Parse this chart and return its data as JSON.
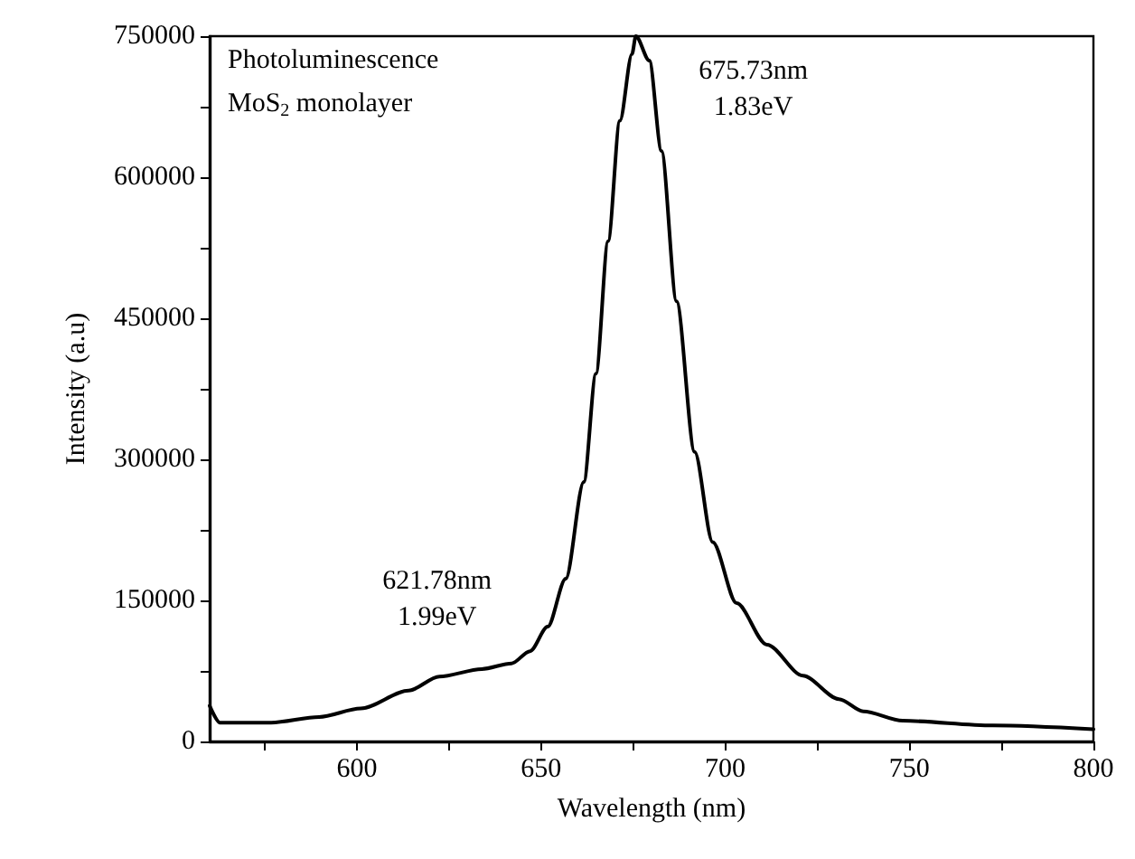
{
  "chart_data": {
    "type": "line",
    "xlabel": "Wavelength (nm)",
    "ylabel": "Intensity (a.u)",
    "x": [
      560,
      562.8,
      576.7,
      589.7,
      601,
      614,
      622.4,
      633.9,
      642,
      647,
      651.8,
      656.7,
      661.6,
      664.9,
      668.2,
      671.4,
      674.7,
      675.73,
      679.4,
      682.7,
      686.8,
      691.7,
      696.6,
      703.1,
      711.3,
      721.1,
      730.9,
      737.5,
      748.2,
      772.7,
      800
    ],
    "series": [
      {
        "color": "#000000",
        "values": [
          38000,
          20000,
          20000,
          26000,
          35000,
          54000,
          69000,
          77000,
          83000,
          96000,
          122000,
          173000,
          276000,
          391000,
          532000,
          660000,
          731000,
          750000,
          724000,
          628000,
          468000,
          308000,
          212000,
          147000,
          103000,
          70000,
          45000,
          32000,
          22000,
          17000,
          13000
        ]
      }
    ],
    "xlim": [
      560,
      800
    ],
    "xticks": [
      {
        "value": 575,
        "label": null
      },
      600,
      {
        "value": 625,
        "label": null
      },
      650,
      {
        "value": 675,
        "label": null
      },
      700,
      {
        "value": 725,
        "label": null
      },
      750,
      {
        "value": 775,
        "label": null
      },
      800
    ],
    "ylim": [
      0,
      750000
    ],
    "yticks": [
      0,
      {
        "value": 75000,
        "label": null
      },
      150000,
      {
        "value": 225000,
        "label": null
      },
      300000,
      {
        "value": 375000,
        "label": null
      },
      450000,
      {
        "value": 525000,
        "label": null
      },
      600000,
      {
        "value": 675000,
        "label": null
      },
      750000
    ],
    "marker": "none",
    "line_style": "solid",
    "annotations": [
      "Photoluminescence",
      "MoS$_{2}$ monolayer",
      {
        "text": "621.78nm\n1.99eV",
        "x": 621.78,
        "y": 69200
      },
      {
        "text": "675.73nm\n1.83eV",
        "x": 675.73,
        "y": 750000
      }
    ]
  }
}
